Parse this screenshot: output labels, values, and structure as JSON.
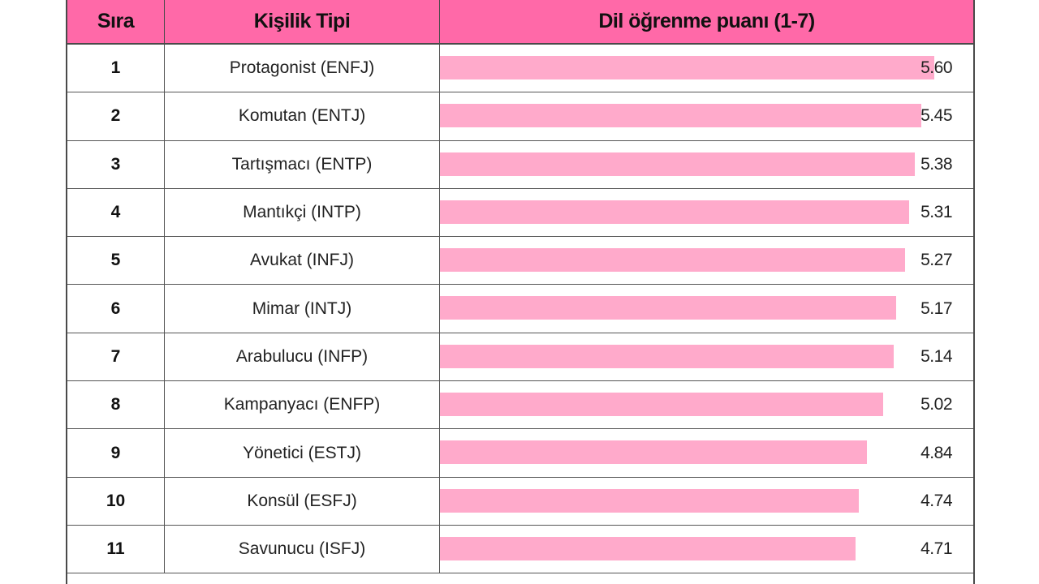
{
  "table": {
    "headers": {
      "rank": "Sıra",
      "type": "Kişilik Tipi",
      "score": "Dil öğrenme puanı (1-7)"
    }
  },
  "chart_data": {
    "type": "bar",
    "orientation": "horizontal",
    "xlim": [
      0,
      6.05
    ],
    "categories": [
      "Protagonist (ENFJ)",
      "Komutan (ENTJ)",
      "Tartışmacı (ENTP)",
      "Mantıkçi (INTP)",
      "Avukat (INFJ)",
      "Mimar (INTJ)",
      "Arabulucu (INFP)",
      "Kampanyacı (ENFP)",
      "Yönetici (ESTJ)",
      "Konsül (ESFJ)",
      "Savunucu (ISFJ)"
    ],
    "ranks": [
      "1",
      "2",
      "3",
      "4",
      "5",
      "6",
      "7",
      "8",
      "9",
      "10",
      "11"
    ],
    "values": [
      5.6,
      5.45,
      5.38,
      5.31,
      5.27,
      5.17,
      5.14,
      5.02,
      4.84,
      4.74,
      4.71
    ],
    "value_labels": [
      "5.60",
      "5.45",
      "5.38",
      "5.31",
      "5.27",
      "5.17",
      "5.14",
      "5.02",
      "4.84",
      "4.74",
      "4.71"
    ],
    "bar_color": "#ffaacb",
    "header_color": "#ff69a8"
  }
}
